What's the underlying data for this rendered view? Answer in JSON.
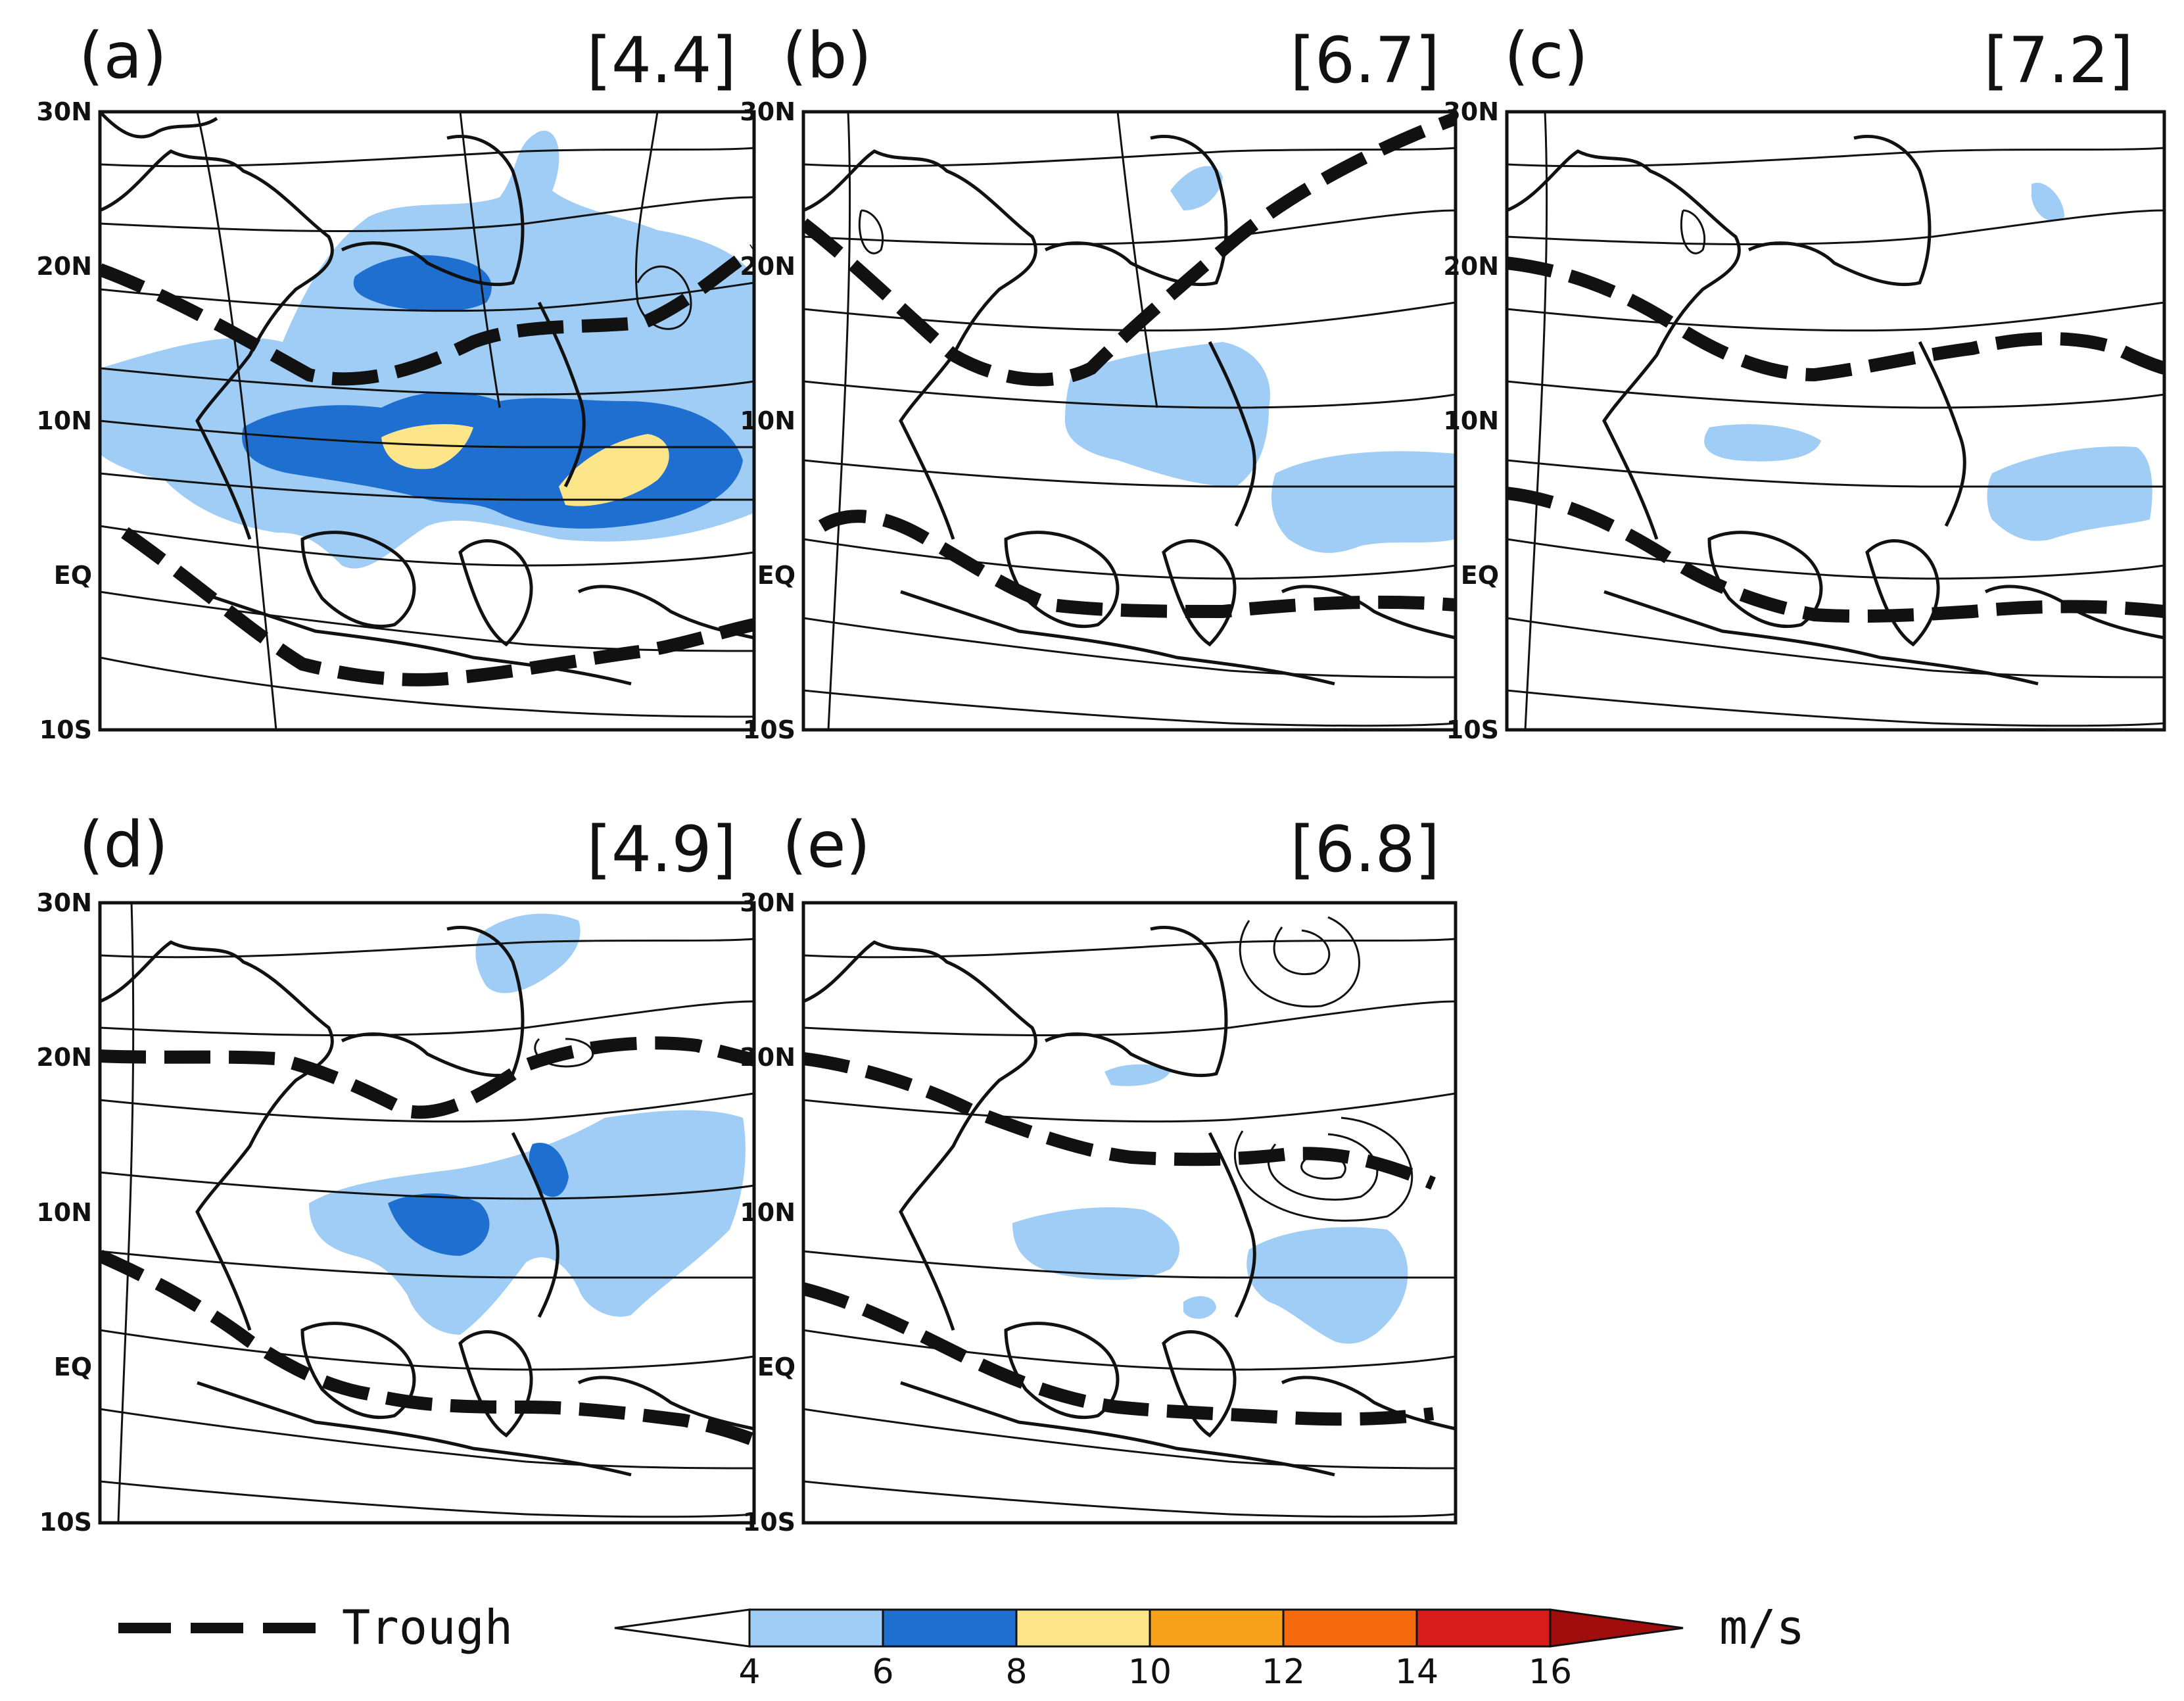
{
  "panels": [
    {
      "letter": "(a)",
      "value": "[4.4]"
    },
    {
      "letter": "(b)",
      "value": "[6.7]"
    },
    {
      "letter": "(c)",
      "value": "[7.2]"
    },
    {
      "letter": "(d)",
      "value": "[4.9]"
    },
    {
      "letter": "(e)",
      "value": "[6.8]"
    }
  ],
  "lat_labels": [
    "30N",
    "20N",
    "10N",
    "EQ",
    "10S"
  ],
  "legend": {
    "trough_label": "Trough",
    "unit": "m/s",
    "ticks": [
      "4",
      "6",
      "8",
      "10",
      "12",
      "14",
      "16"
    ],
    "colors": [
      "#9fcdf5",
      "#1f6fd1",
      "#fde68a",
      "#f7a21b",
      "#f46a0c",
      "#d81b1b",
      "#a10d0d"
    ]
  },
  "colors": {
    "speed_4_6": "#9fcdf5",
    "speed_6_8": "#1f6fd1",
    "speed_8_10": "#fde68a",
    "streamline": "#111111",
    "trough": "#111111"
  }
}
